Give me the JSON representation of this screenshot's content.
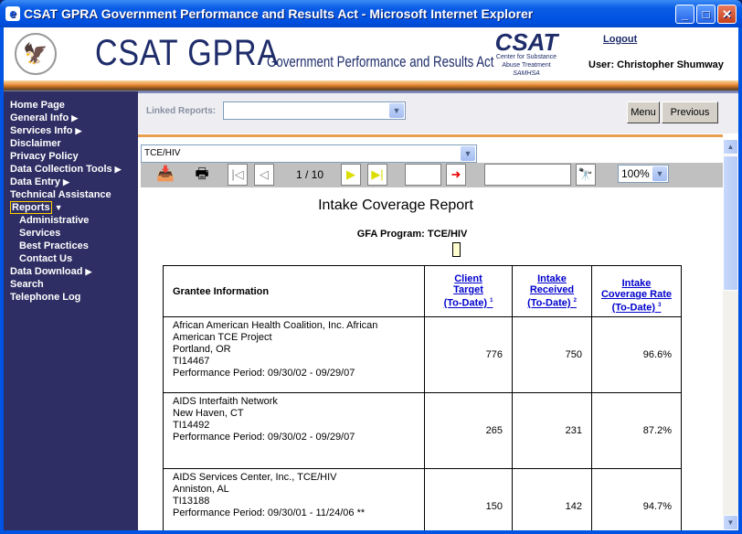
{
  "window": {
    "title": "CSAT GPRA Government Performance and Results Act - Microsoft Internet Explorer"
  },
  "header": {
    "brand": "CSAT GPRA",
    "brand_sub": "Government Performance and Results Act",
    "csat_logo": {
      "name": "CSAT",
      "line1": "Center for Substance",
      "line2": "Abuse Treatment",
      "line3": "SAMHSA"
    },
    "logout": "Logout",
    "user": "User: Christopher Shumway"
  },
  "sidebar": {
    "items": [
      {
        "label": "Home Page",
        "arrow": ""
      },
      {
        "label": "General Info",
        "arrow": "▶"
      },
      {
        "label": "Services Info",
        "arrow": "▶"
      },
      {
        "label": "Disclaimer",
        "arrow": ""
      },
      {
        "label": "Privacy Policy",
        "arrow": ""
      },
      {
        "label": "Data Collection Tools",
        "arrow": "▶"
      },
      {
        "label": "Data Entry",
        "arrow": "▶"
      },
      {
        "label": "Technical Assistance",
        "arrow": ""
      },
      {
        "label": "Reports",
        "arrow": "▼"
      },
      {
        "label": "Administrative",
        "arrow": ""
      },
      {
        "label": "Services",
        "arrow": ""
      },
      {
        "label": "Best Practices",
        "arrow": ""
      },
      {
        "label": "Contact Us",
        "arrow": ""
      },
      {
        "label": "Data Download",
        "arrow": "▶"
      },
      {
        "label": "Search",
        "arrow": ""
      },
      {
        "label": "Telephone Log",
        "arrow": ""
      }
    ]
  },
  "linkbar": {
    "label": "Linked Reports:",
    "value": "",
    "menu": "Menu",
    "previous": "Previous"
  },
  "viewer": {
    "report_select": "TCE/HIV",
    "page": "1 / 10",
    "goto_page": "",
    "search": "",
    "zoom": "100%"
  },
  "report": {
    "title": "Intake Coverage Report",
    "gfa": "GFA Program: TCE/HIV",
    "columns": [
      {
        "label": "Grantee Information"
      },
      {
        "l1": "Client",
        "l2": "Target",
        "l3": "(To-Date)",
        "fn": "1"
      },
      {
        "l1": "Intake",
        "l2": "Received",
        "l3": "(To-Date)",
        "fn": "2"
      },
      {
        "l1": "Intake",
        "l2": "Coverage Rate",
        "l3": "(To-Date)",
        "fn": "3"
      }
    ],
    "rows": [
      {
        "name": "African American Health Coalition, Inc. African American TCE Project",
        "city": "Portland, OR",
        "id": "TI14467",
        "period": "Performance Period: 09/30/02 - 09/29/07",
        "target": "776",
        "received": "750",
        "rate": "96.6%"
      },
      {
        "name": "AIDS Interfaith Network",
        "city": "New Haven, CT",
        "id": "TI14492",
        "period": "Performance Period: 09/30/02 - 09/29/07",
        "target": "265",
        "received": "231",
        "rate": "87.2%"
      },
      {
        "name": "AIDS Services Center, Inc., TCE/HIV",
        "city": "Anniston, AL",
        "id": "TI13188",
        "period": "Performance Period: 09/30/01 - 11/24/06 **",
        "target": "150",
        "received": "142",
        "rate": "94.7%"
      }
    ]
  }
}
